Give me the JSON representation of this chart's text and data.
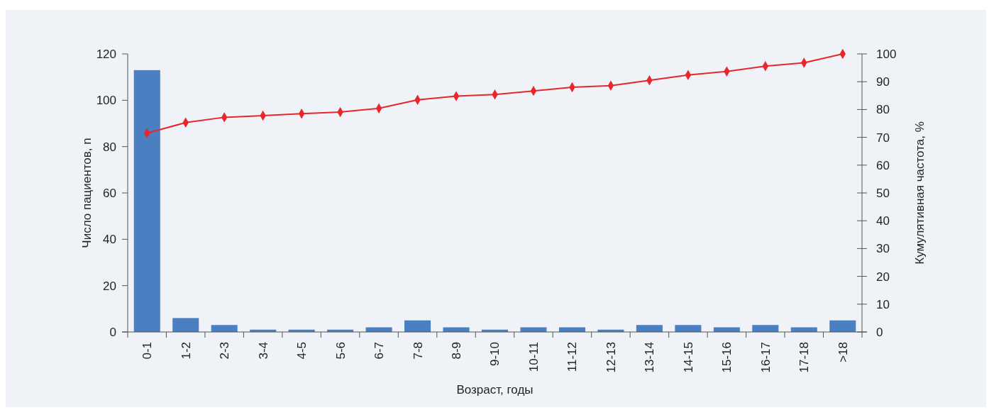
{
  "chart_data": {
    "type": "bar",
    "xlabel": "Возраст, годы",
    "ylabel": "Число пациентов, n",
    "y2label": "Кумулятивная частота, %",
    "categories": [
      "0-1",
      "1-2",
      "2-3",
      "3-4",
      "4-5",
      "5-6",
      "6-7",
      "7-8",
      "8-9",
      "9-10",
      "10-11",
      "11-12",
      "12-13",
      "13-14",
      "14-15",
      "15-16",
      "16-17",
      "17-18",
      ">18"
    ],
    "series": [
      {
        "color": "#4a7fc1",
        "values": [
          113,
          6,
          3,
          1,
          1,
          1,
          2,
          5,
          2,
          1,
          2,
          2,
          1,
          3,
          3,
          2,
          3,
          2,
          5
        ]
      },
      {
        "type": "line",
        "axis": "y2",
        "color": "#e8262b",
        "marker": "diamond",
        "values": [
          71.5,
          75.3,
          77.2,
          77.8,
          78.5,
          79.1,
          80.4,
          83.5,
          84.8,
          85.4,
          86.7,
          88.0,
          88.6,
          90.5,
          92.4,
          93.7,
          95.6,
          96.8,
          100
        ]
      }
    ],
    "ylim": [
      0,
      120
    ],
    "yticks": [
      0,
      20,
      40,
      60,
      80,
      100,
      120
    ],
    "y2lim": [
      0,
      100
    ],
    "y2ticks": [
      0,
      10,
      20,
      30,
      40,
      50,
      60,
      70,
      80,
      90,
      100
    ],
    "grid": false
  }
}
